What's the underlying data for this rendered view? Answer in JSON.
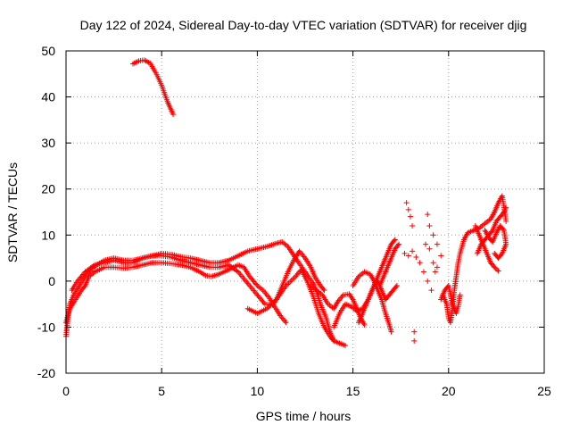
{
  "chart_data": {
    "type": "scatter",
    "title": "Day 122 of 2024, Sidereal Day-to-day VTEC variation (SDTVAR) for receiver djig",
    "xlabel": "GPS time / hours",
    "ylabel": "SDTVAR / TECUs",
    "xlim": [
      0,
      25
    ],
    "ylim": [
      -20,
      50
    ],
    "xticks": [
      0,
      5,
      10,
      15,
      20,
      25
    ],
    "yticks": [
      -20,
      -10,
      0,
      10,
      20,
      30,
      40,
      50
    ],
    "xtick_labels": [
      "0",
      "5",
      "10",
      "15",
      "20",
      "25"
    ],
    "ytick_labels": [
      "-20",
      "-10",
      "0",
      "10",
      "20",
      "30",
      "40",
      "50"
    ],
    "grid": true,
    "marker": "+",
    "color": "#ff0000",
    "series": [
      {
        "name": "arc-high",
        "points": [
          [
            3.5,
            47.2
          ],
          [
            3.8,
            47.8
          ],
          [
            4.1,
            48.0
          ],
          [
            4.4,
            47.3
          ],
          [
            4.7,
            45.2
          ],
          [
            5.0,
            42.5
          ],
          [
            5.3,
            39.0
          ],
          [
            5.6,
            36.2
          ]
        ]
      },
      {
        "name": "arc-a",
        "points": [
          [
            0.0,
            -12
          ],
          [
            0.1,
            -8
          ],
          [
            0.2,
            -5
          ],
          [
            0.4,
            -3
          ],
          [
            0.7,
            -1
          ],
          [
            1.0,
            1
          ],
          [
            1.3,
            2.5
          ],
          [
            1.6,
            3.5
          ],
          [
            2.0,
            4.5
          ],
          [
            2.5,
            5
          ],
          [
            3.0,
            4.5
          ],
          [
            3.5,
            4.5
          ],
          [
            4.0,
            5
          ],
          [
            4.5,
            5.5
          ],
          [
            5.0,
            6
          ],
          [
            5.5,
            5.8
          ],
          [
            6.0,
            5.3
          ],
          [
            6.5,
            5
          ],
          [
            7.0,
            4.5
          ],
          [
            7.5,
            4
          ],
          [
            8.0,
            4
          ],
          [
            8.5,
            4.5
          ],
          [
            9.0,
            5.5
          ],
          [
            9.5,
            6.5
          ],
          [
            10.0,
            7
          ],
          [
            10.5,
            7.5
          ],
          [
            11.0,
            8.2
          ],
          [
            11.3,
            8.5
          ],
          [
            11.6,
            7.5
          ],
          [
            12.0,
            5
          ],
          [
            12.5,
            2
          ],
          [
            13.0,
            -1
          ],
          [
            13.3,
            -5
          ],
          [
            13.6,
            -8
          ],
          [
            13.8,
            -11
          ],
          [
            14.0,
            -13
          ]
        ]
      },
      {
        "name": "arc-b",
        "points": [
          [
            0.0,
            -9
          ],
          [
            0.2,
            -6
          ],
          [
            0.5,
            -4
          ],
          [
            0.8,
            -2
          ],
          [
            1.0,
            -1
          ],
          [
            1.2,
            1
          ],
          [
            1.5,
            2
          ],
          [
            2.0,
            3
          ],
          [
            2.5,
            3
          ],
          [
            3.0,
            2.8
          ],
          [
            3.5,
            3
          ],
          [
            4.0,
            3.5
          ],
          [
            4.5,
            4
          ],
          [
            5.0,
            4
          ],
          [
            5.5,
            3.8
          ],
          [
            6.0,
            3.5
          ],
          [
            6.5,
            3
          ],
          [
            7.0,
            2
          ],
          [
            7.3,
            1.2
          ],
          [
            7.6,
            1
          ],
          [
            8.0,
            1.5
          ],
          [
            8.5,
            2.5
          ],
          [
            9.0,
            3.5
          ],
          [
            9.3,
            3
          ],
          [
            9.6,
            1
          ],
          [
            10.0,
            -1
          ],
          [
            10.3,
            -2
          ],
          [
            10.6,
            -3.5
          ],
          [
            10.9,
            -5.5
          ],
          [
            11.2,
            -7.5
          ],
          [
            11.5,
            -9
          ]
        ]
      },
      {
        "name": "arc-c",
        "points": [
          [
            0.3,
            -2
          ],
          [
            0.6,
            0
          ],
          [
            1.0,
            2
          ],
          [
            1.5,
            3.5
          ],
          [
            2.0,
            4
          ],
          [
            2.5,
            4.5
          ],
          [
            3.0,
            4
          ],
          [
            3.5,
            4
          ],
          [
            4.0,
            5
          ],
          [
            4.5,
            5.5
          ],
          [
            5.0,
            5.5
          ],
          [
            5.5,
            5.2
          ],
          [
            6.0,
            4.5
          ],
          [
            6.5,
            4
          ],
          [
            7.0,
            3.5
          ],
          [
            7.5,
            3
          ],
          [
            8.0,
            3
          ],
          [
            8.5,
            3.5
          ],
          [
            9.0,
            2
          ],
          [
            9.5,
            -0.5
          ],
          [
            10.0,
            -3
          ],
          [
            10.4,
            -5
          ],
          [
            10.8,
            -5.2
          ],
          [
            11.0,
            -4
          ],
          [
            11.3,
            -1
          ],
          [
            11.6,
            2
          ],
          [
            11.9,
            4.5
          ],
          [
            12.2,
            6.5
          ],
          [
            12.5,
            5
          ],
          [
            12.8,
            3
          ],
          [
            13.0,
            1
          ],
          [
            13.3,
            -1
          ],
          [
            13.5,
            -2
          ]
        ]
      },
      {
        "name": "arc-d",
        "points": [
          [
            9.5,
            -6
          ],
          [
            10.0,
            -7
          ],
          [
            10.5,
            -6
          ],
          [
            11.0,
            -4
          ],
          [
            11.5,
            -1
          ],
          [
            12.0,
            1
          ],
          [
            12.3,
            2.5
          ],
          [
            12.6,
            0
          ],
          [
            12.9,
            -3
          ],
          [
            13.2,
            -7
          ],
          [
            13.5,
            -10
          ],
          [
            13.8,
            -12
          ],
          [
            14.0,
            -13
          ],
          [
            14.3,
            -13.5
          ],
          [
            14.6,
            -14
          ]
        ]
      },
      {
        "name": "arc-e",
        "points": [
          [
            12.8,
            -1
          ],
          [
            13.1,
            -2
          ],
          [
            13.4,
            -3
          ],
          [
            13.7,
            -5
          ],
          [
            14.0,
            -6
          ],
          [
            14.2,
            -4.5
          ],
          [
            14.5,
            -3
          ],
          [
            14.8,
            -2.8
          ],
          [
            15.0,
            -4
          ],
          [
            15.2,
            -6
          ],
          [
            15.4,
            -8
          ],
          [
            15.6,
            -9.5
          ]
        ]
      },
      {
        "name": "arc-f",
        "points": [
          [
            14.0,
            -10
          ],
          [
            14.3,
            -7
          ],
          [
            14.6,
            -5
          ],
          [
            14.9,
            -5.5
          ],
          [
            15.2,
            -6.5
          ],
          [
            15.5,
            -6
          ],
          [
            15.8,
            -4
          ],
          [
            16.0,
            -2
          ],
          [
            16.2,
            0
          ],
          [
            16.4,
            2
          ],
          [
            16.6,
            4
          ],
          [
            16.8,
            6
          ],
          [
            17.0,
            8
          ],
          [
            17.2,
            9
          ]
        ]
      },
      {
        "name": "arc-g",
        "points": [
          [
            15.3,
            -9
          ],
          [
            15.5,
            -7
          ],
          [
            15.7,
            -5
          ],
          [
            15.9,
            -3
          ],
          [
            16.1,
            -1
          ],
          [
            16.3,
            0
          ],
          [
            16.5,
            -2
          ],
          [
            16.7,
            -4
          ],
          [
            16.9,
            -3
          ],
          [
            17.1,
            -2
          ],
          [
            17.3,
            -1
          ]
        ]
      },
      {
        "name": "arc-h",
        "points": [
          [
            15.0,
            -1
          ],
          [
            15.3,
            1
          ],
          [
            15.6,
            2
          ],
          [
            15.9,
            1.5
          ],
          [
            16.1,
            0
          ],
          [
            16.3,
            -2
          ],
          [
            16.5,
            -4
          ],
          [
            16.7,
            -7
          ],
          [
            16.9,
            -9.5
          ],
          [
            17.0,
            -11
          ]
        ]
      },
      {
        "name": "arc-i",
        "points": [
          [
            16.4,
            -1
          ],
          [
            16.6,
            1
          ],
          [
            16.8,
            3
          ],
          [
            17.0,
            5
          ],
          [
            17.2,
            7
          ],
          [
            17.4,
            8
          ]
        ]
      },
      {
        "name": "scatter-18",
        "points": [
          [
            17.8,
            17
          ],
          [
            17.9,
            15.5
          ],
          [
            18.0,
            14
          ],
          [
            18.1,
            12
          ],
          [
            17.7,
            6
          ],
          [
            17.9,
            5.5
          ],
          [
            18.1,
            6.5
          ],
          [
            18.3,
            5.2
          ],
          [
            18.5,
            4
          ],
          [
            18.7,
            2
          ],
          [
            18.9,
            0
          ],
          [
            19.1,
            -2
          ],
          [
            18.2,
            -11
          ],
          [
            18.2,
            -13
          ],
          [
            18.9,
            14.5
          ],
          [
            19.0,
            12
          ],
          [
            19.2,
            10
          ],
          [
            19.4,
            8
          ],
          [
            19.6,
            5.5
          ],
          [
            19.4,
            3
          ],
          [
            19.2,
            4
          ],
          [
            18.8,
            8
          ],
          [
            19.0,
            7
          ],
          [
            19.3,
            2
          ]
        ]
      },
      {
        "name": "arc-j",
        "points": [
          [
            19.7,
            -3
          ],
          [
            19.9,
            -5
          ],
          [
            20.0,
            -8
          ],
          [
            20.1,
            -9
          ],
          [
            20.2,
            -6
          ],
          [
            20.3,
            -2
          ],
          [
            20.4,
            1
          ],
          [
            20.5,
            4
          ],
          [
            20.6,
            6
          ],
          [
            20.8,
            9
          ],
          [
            21.0,
            10.5
          ],
          [
            21.3,
            11
          ],
          [
            21.6,
            11.5
          ],
          [
            21.9,
            12.5
          ],
          [
            22.2,
            13.5
          ],
          [
            22.4,
            15
          ],
          [
            22.6,
            17
          ],
          [
            22.8,
            18.5
          ],
          [
            22.9,
            16
          ],
          [
            23.0,
            13
          ]
        ]
      },
      {
        "name": "arc-k",
        "points": [
          [
            19.6,
            -4
          ],
          [
            19.8,
            -2
          ],
          [
            20.0,
            -1
          ],
          [
            20.2,
            -5
          ],
          [
            20.4,
            -7
          ],
          [
            20.5,
            -5.5
          ],
          [
            20.6,
            -3
          ]
        ]
      },
      {
        "name": "arc-l",
        "points": [
          [
            21.4,
            12
          ],
          [
            21.6,
            10
          ],
          [
            21.8,
            8
          ],
          [
            22.0,
            6
          ],
          [
            22.2,
            4
          ],
          [
            22.4,
            3
          ],
          [
            22.6,
            2.2
          ]
        ]
      },
      {
        "name": "arc-m",
        "points": [
          [
            21.5,
            6
          ],
          [
            21.7,
            8
          ],
          [
            21.9,
            9
          ],
          [
            22.1,
            10
          ],
          [
            22.3,
            11
          ],
          [
            22.5,
            13
          ],
          [
            22.7,
            14
          ],
          [
            22.9,
            15
          ],
          [
            23.0,
            16
          ]
        ]
      },
      {
        "name": "arc-n",
        "points": [
          [
            22.4,
            6
          ],
          [
            22.6,
            5
          ],
          [
            22.8,
            6
          ],
          [
            23.0,
            8
          ],
          [
            22.9,
            11
          ],
          [
            22.7,
            12
          ],
          [
            22.5,
            10.5
          ],
          [
            22.3,
            8.5
          ],
          [
            22.1,
            9.5
          ],
          [
            21.9,
            11
          ]
        ]
      }
    ]
  }
}
